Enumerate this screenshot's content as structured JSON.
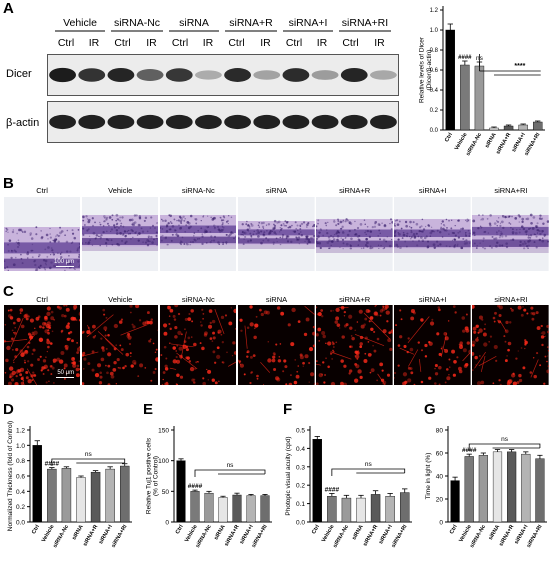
{
  "panels": {
    "a": "A",
    "b": "B",
    "c": "C",
    "d": "D",
    "e": "E",
    "f": "F",
    "g": "G"
  },
  "blot": {
    "groups": [
      "Vehicle",
      "siRNA-Nc",
      "siRNA",
      "siRNA+R",
      "siRNA+I",
      "siRNA+RI"
    ],
    "sublabels": [
      "Ctrl",
      "IR"
    ],
    "rows": [
      "Dicer",
      "β-actin"
    ],
    "dicer_intensity": [
      0.92,
      0.82,
      0.88,
      0.62,
      0.8,
      0.28,
      0.86,
      0.32,
      0.85,
      0.35,
      0.88,
      0.3
    ],
    "actin_intensity": [
      0.9,
      0.9,
      0.9,
      0.9,
      0.9,
      0.9,
      0.9,
      0.9,
      0.9,
      0.9,
      0.9,
      0.9
    ]
  },
  "groups": [
    "Vehicle",
    "siRNA-Nc",
    "siRNA",
    "siRNA+R",
    "siRNA+I",
    "siRNA+RI"
  ],
  "conditions": [
    "Ctrl",
    "Vehicle",
    "siRNA-Nc",
    "siRNA",
    "siRNA+R",
    "siRNA+I",
    "siRNA+RI"
  ],
  "histology": {
    "scale_label": "100 μm"
  },
  "immuno": {
    "scale_label": "50 μm"
  },
  "colors": {
    "bar_fills": [
      "#000000",
      "#7a7a7a",
      "#9a9a9a",
      "#e6e6e6",
      "#5a5a5a",
      "#b4b4b4",
      "#6e6e6e"
    ],
    "stain": "#7a5aa8",
    "fluor": "#ff2a1a"
  },
  "chart_data": [
    {
      "type": "bar",
      "panel": "A",
      "ylabel": "Relative levels of Dicer\n(Dicer/β-actin)",
      "categories": [
        "Ctrl",
        "Vehicle",
        "siRNA-Nc",
        "siRNA",
        "siRNA+R",
        "siRNA+I",
        "siRNA+RI"
      ],
      "values": [
        1.0,
        0.65,
        0.64,
        0.02,
        0.04,
        0.05,
        0.08
      ],
      "errors": [
        0.06,
        0.04,
        0.04,
        0.01,
        0.01,
        0.01,
        0.01
      ],
      "ylim": [
        0,
        1.2
      ],
      "yticks": [
        "0.0",
        "0.2",
        "0.4",
        "0.6",
        "0.8",
        "1.0",
        "1.2"
      ],
      "annotations": {
        "hash": "####",
        "ns": "ns",
        "stars": "****"
      }
    },
    {
      "type": "bar",
      "panel": "D",
      "ylabel": "Normalized Thickness (fold of Control)",
      "categories": [
        "Ctrl",
        "Vehicle",
        "siRNA-Nc",
        "siRNA",
        "siRNA+R",
        "siRNA+I",
        "siRNA+RI"
      ],
      "values": [
        1.0,
        0.69,
        0.7,
        0.58,
        0.65,
        0.69,
        0.73
      ],
      "errors": [
        0.06,
        0.02,
        0.02,
        0.02,
        0.02,
        0.03,
        0.03
      ],
      "ylim": [
        0,
        1.2
      ],
      "yticks": [
        "0.0",
        "0.2",
        "0.4",
        "0.6",
        "0.8",
        "1.0",
        "1.2"
      ],
      "annotations": {
        "hash": "####",
        "ns": "ns"
      }
    },
    {
      "type": "bar",
      "panel": "E",
      "ylabel": "Relative Tuj1 positive cells\n(% of Control)",
      "categories": [
        "Ctrl",
        "Vehicle",
        "siRNA-Nc",
        "siRNA",
        "siRNA+R",
        "siRNA+I",
        "siRNA+RI"
      ],
      "values": [
        100,
        50,
        47,
        40,
        44,
        43,
        43
      ],
      "errors": [
        3,
        2,
        3,
        2,
        3,
        2,
        2
      ],
      "ylim": [
        0,
        150
      ],
      "yticks": [
        "0",
        "50",
        "100",
        "150"
      ],
      "annotations": {
        "hash": "####",
        "ns": "ns"
      }
    },
    {
      "type": "bar",
      "panel": "F",
      "ylabel": "Photopic visual acuity (cpd)",
      "categories": [
        "Ctrl",
        "Vehicle",
        "siRNA-Nc",
        "siRNA",
        "siRNA+R",
        "siRNA+I",
        "siRNA+RI"
      ],
      "values": [
        0.45,
        0.14,
        0.13,
        0.13,
        0.15,
        0.14,
        0.16
      ],
      "errors": [
        0.015,
        0.015,
        0.015,
        0.015,
        0.02,
        0.015,
        0.02
      ],
      "ylim": [
        0,
        0.5
      ],
      "yticks": [
        "0.0",
        "0.1",
        "0.2",
        "0.3",
        "0.4",
        "0.5"
      ],
      "annotations": {
        "hash": "####",
        "ns": "ns"
      }
    },
    {
      "type": "bar",
      "panel": "G",
      "ylabel": "Time in light (%)",
      "categories": [
        "Ctrl",
        "Vehicle",
        "siRNA-Nc",
        "siRNA",
        "siRNA+R",
        "siRNA+I",
        "siRNA+RI"
      ],
      "values": [
        36,
        57,
        58,
        61,
        61,
        59,
        55
      ],
      "errors": [
        3,
        2,
        2,
        2,
        2,
        2,
        3
      ],
      "ylim": [
        0,
        80
      ],
      "yticks": [
        "0",
        "20",
        "40",
        "60",
        "80"
      ],
      "annotations": {
        "hash": "####",
        "ns": "ns"
      }
    }
  ]
}
